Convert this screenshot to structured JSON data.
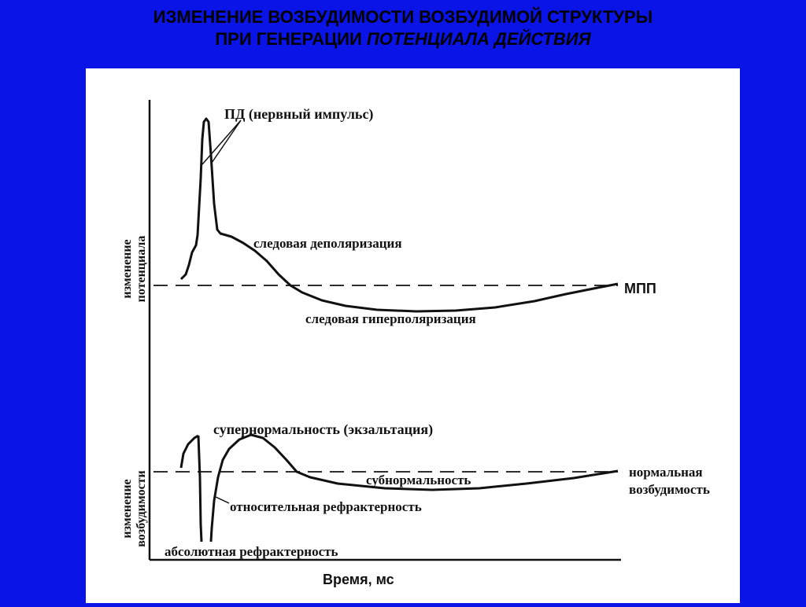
{
  "title": {
    "line1": "ИЗМЕНЕНИЕ ВОЗБУДИМОСТИ ВОЗБУДИМОЙ СТРУКТУРЫ",
    "line2_prefix": "ПРИ ГЕНЕРАЦИИ ",
    "line2_italic": "ПОТЕНЦИАЛА ДЕЙСТВИЯ"
  },
  "top_graph": {
    "ylabel_line1": "изменение",
    "ylabel_line2": "потенциала",
    "label_pd": "ПД (нервный импульс)",
    "label_trace_depol": "следовая деполяризация",
    "label_mpp": "МПП",
    "label_trace_hyperpol": "следовая гиперполяризация"
  },
  "bottom_graph": {
    "ylabel_line1": "изменение",
    "ylabel_line2": "возбудимости",
    "label_supernormal": "супернормальность (экзальтация)",
    "label_subnormal": "субнормальность",
    "label_relative": "относительная  рефрактерность",
    "label_absolute": "абсолютная рефрактерность",
    "label_normal_line1": "нормальная",
    "label_normal_line2": "возбудимость"
  },
  "xlabel": "Время, мс",
  "colors": {
    "background": "#0a14e6",
    "panel": "#ffffff",
    "ink": "#111111"
  }
}
